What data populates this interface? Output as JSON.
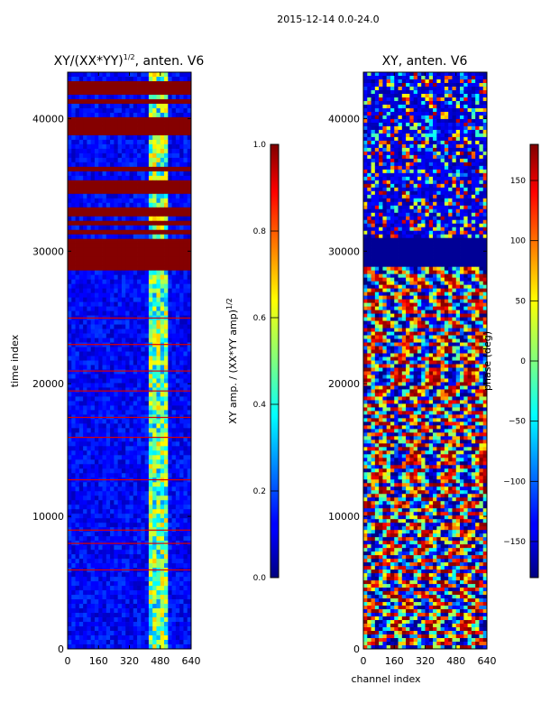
{
  "suptitle": "2015-12-14 0.0-24.0",
  "chart_data": [
    {
      "type": "heatmap",
      "title_main": "XY/(XX*YY)",
      "title_exp": "1/2",
      "title_tail": ", anten. V6",
      "xlabel": "",
      "ylabel": "time index",
      "xticks": [
        "0",
        "160",
        "320",
        "480",
        "640"
      ],
      "yticks": [
        "0",
        "10000",
        "20000",
        "30000",
        "40000"
      ],
      "xlim": [
        0,
        640
      ],
      "ylim": [
        0,
        43500
      ],
      "colorbar": {
        "label_main": "XY amp. / (XX*YY amp)",
        "label_exp": "1/2",
        "ticks": [
          "0.0",
          "0.2",
          "0.4",
          "0.6",
          "0.8",
          "1.0"
        ],
        "range": [
          0.0,
          1.0
        ]
      },
      "saturated_time_bands": [
        [
          28600,
          31000
        ],
        [
          31300,
          31700
        ],
        [
          32000,
          32400
        ],
        [
          32600,
          33300
        ],
        [
          34300,
          35400
        ],
        [
          36000,
          36200
        ],
        [
          38700,
          40000
        ],
        [
          41200,
          41300
        ],
        [
          41800,
          42800
        ]
      ],
      "bright_channel_range": [
        420,
        520
      ]
    },
    {
      "type": "heatmap",
      "title_main": "XY, anten. V6",
      "xlabel": "channel index",
      "ylabel": "",
      "xticks": [
        "0",
        "160",
        "320",
        "480",
        "640"
      ],
      "yticks": [
        "0",
        "10000",
        "20000",
        "30000",
        "40000"
      ],
      "xlim": [
        0,
        640
      ],
      "ylim": [
        0,
        43500
      ],
      "colorbar": {
        "label_main": "phase (deg)",
        "ticks": [
          "−150",
          "−100",
          "−50",
          "0",
          "50",
          "100",
          "150"
        ],
        "range": [
          -180,
          180
        ]
      },
      "flat_phase_band": [
        28900,
        31000
      ]
    }
  ]
}
